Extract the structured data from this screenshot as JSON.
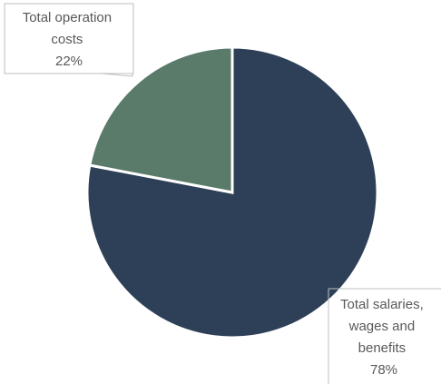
{
  "chart_data": {
    "type": "pie",
    "title": "",
    "slices": [
      {
        "label_lines": [
          "Total salaries,",
          "wages and",
          "benefits"
        ],
        "label": "Total salaries, wages and benefits",
        "value": 78,
        "percent_text": "78%",
        "color": "#2e4057"
      },
      {
        "label_lines": [
          "Total operation",
          "costs"
        ],
        "label": "Total operation costs",
        "value": 22,
        "percent_text": "22%",
        "color": "#5a7a6a"
      }
    ],
    "legend": "none"
  }
}
